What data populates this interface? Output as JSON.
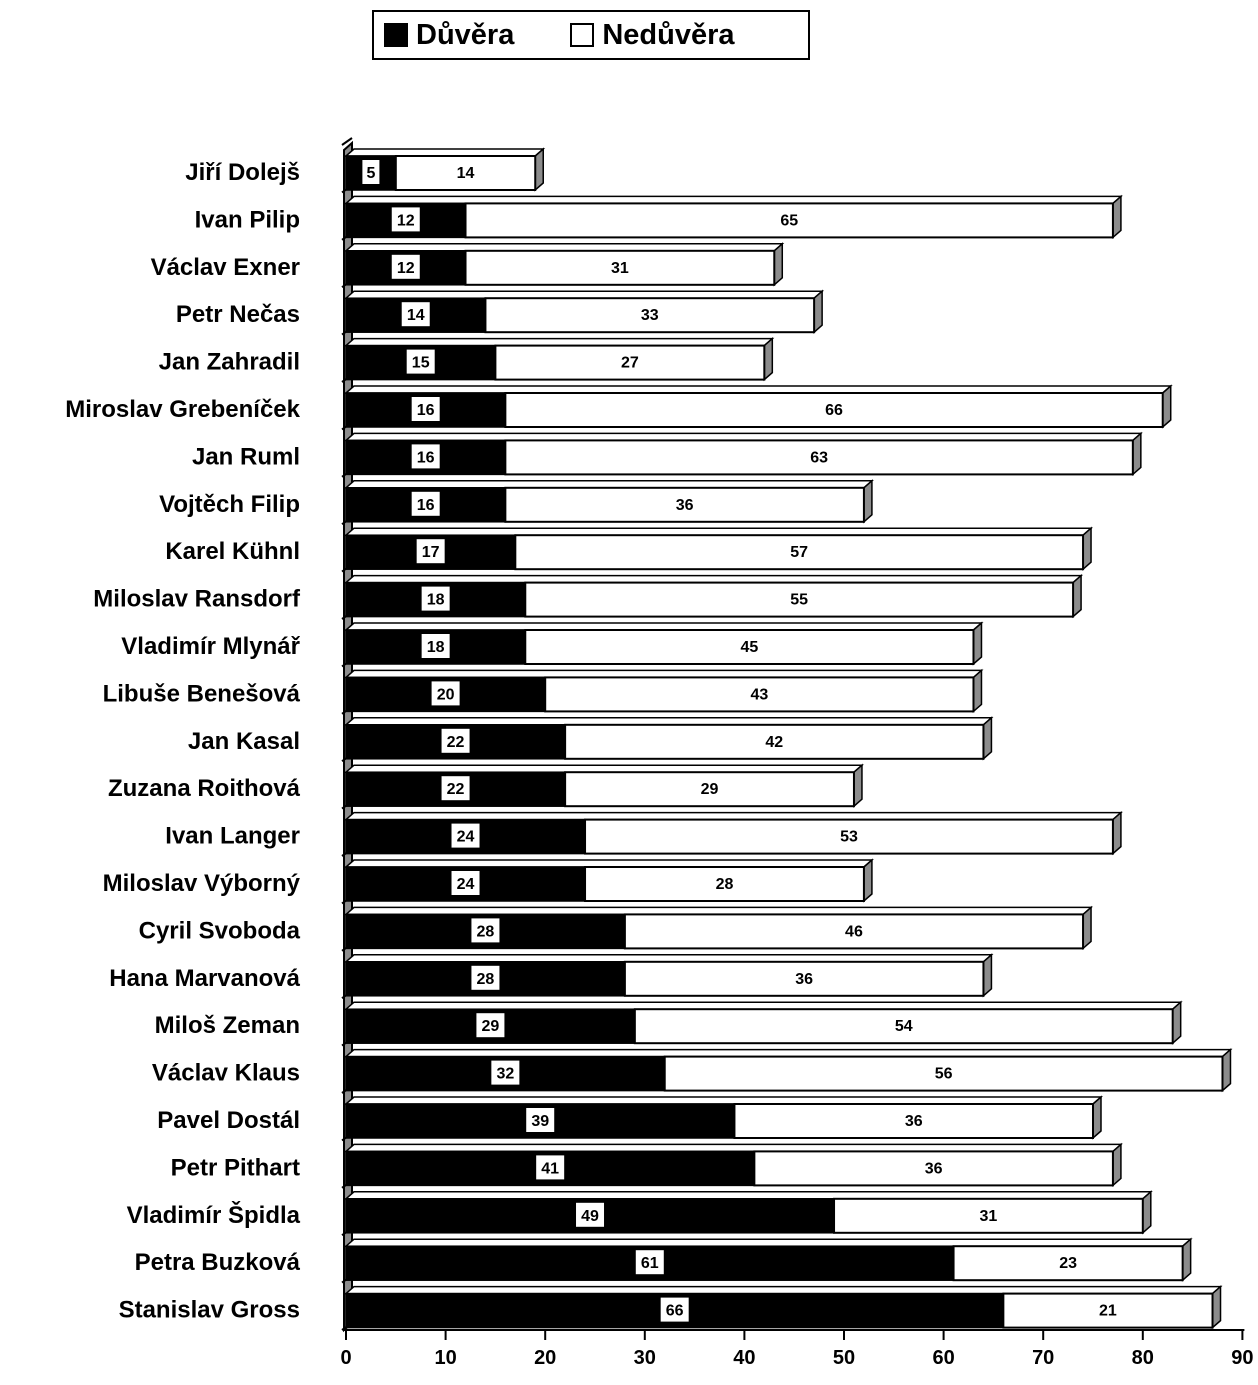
{
  "chart_data": {
    "type": "bar",
    "orientation": "horizontal",
    "stacked": true,
    "legend_position": "top",
    "categories": [
      "Jiří Dolejš",
      "Ivan Pilip",
      "Václav Exner",
      "Petr Nečas",
      "Jan Zahradil",
      "Miroslav Grebeníček",
      "Jan Ruml",
      "Vojtěch Filip",
      "Karel Kühnl",
      "Miloslav Ransdorf",
      "Vladimír Mlynář",
      "Libuše Benešová",
      "Jan Kasal",
      "Zuzana Roithová",
      "Ivan Langer",
      "Miloslav Výborný",
      "Cyril Svoboda",
      "Hana Marvanová",
      "Miloš Zeman",
      "Václav Klaus",
      "Pavel Dostál",
      "Petr Pithart",
      "Vladimír Špidla",
      "Petra Buzková",
      "Stanislav Gross"
    ],
    "series": [
      {
        "name": "Důvěra",
        "color": "#000000",
        "values": [
          5,
          12,
          12,
          14,
          15,
          16,
          16,
          16,
          17,
          18,
          18,
          20,
          22,
          22,
          24,
          24,
          28,
          28,
          29,
          32,
          39,
          41,
          49,
          61,
          66
        ]
      },
      {
        "name": "Nedůvěra",
        "color": "#ffffff",
        "values": [
          14,
          65,
          31,
          33,
          27,
          66,
          63,
          36,
          57,
          55,
          45,
          43,
          42,
          29,
          53,
          28,
          46,
          36,
          54,
          56,
          36,
          36,
          31,
          23,
          21
        ]
      }
    ],
    "xlim": [
      0,
      90
    ],
    "xticks": [
      "0",
      "10",
      "20",
      "30",
      "40",
      "50",
      "60",
      "70",
      "80",
      "90"
    ],
    "xlabel": "",
    "ylabel": "",
    "title": ""
  }
}
